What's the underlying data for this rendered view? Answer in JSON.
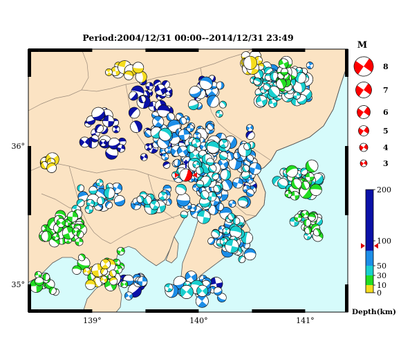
{
  "title": "Period:2004/12/31 00:00--2014/12/31 23:49",
  "colors": {
    "land": "#fbe3c3",
    "sea": "#d6fbfb",
    "border": "#9a8a7a",
    "coast": "#555555",
    "frame": "#000000"
  },
  "map": {
    "lon_range": [
      138.4,
      141.4
    ],
    "lat_range": [
      34.8,
      36.7
    ],
    "x_ticks": [
      {
        "lon": 139,
        "label": "139°"
      },
      {
        "lon": 140,
        "label": "140°"
      },
      {
        "lon": 141,
        "label": "141°"
      }
    ],
    "y_ticks": [
      {
        "lat": 35,
        "label": "35°"
      },
      {
        "lat": 36,
        "label": "36°"
      }
    ],
    "epicenter_marker": {
      "lon": 139.88,
      "lat": 35.79,
      "color": "#ff0000"
    }
  },
  "magnitude_legend": {
    "title": "M",
    "items": [
      {
        "label": "8",
        "mag": 8
      },
      {
        "label": "7",
        "mag": 7
      },
      {
        "label": "6",
        "mag": 6
      },
      {
        "label": "5",
        "mag": 5
      },
      {
        "label": "4",
        "mag": 4
      },
      {
        "label": "3",
        "mag": 3
      }
    ]
  },
  "depth_scale": {
    "label": "Depth(km)",
    "ticks": [
      {
        "value": 200,
        "label": "200"
      },
      {
        "value": 100,
        "label": "100"
      },
      {
        "value": 50,
        "label": "50"
      },
      {
        "value": 30,
        "label": "30"
      },
      {
        "value": 10,
        "label": "10"
      },
      {
        "value": 0,
        "label": "0"
      }
    ],
    "marker_value": 90,
    "bands": [
      {
        "from": 0,
        "to": 10,
        "color": "#f5dc1e"
      },
      {
        "from": 10,
        "to": 30,
        "color": "#22dd22"
      },
      {
        "from": 30,
        "to": 50,
        "color": "#19cfcf"
      },
      {
        "from": 50,
        "to": 80,
        "color": "#1c8ee8"
      },
      {
        "from": 80,
        "to": 200,
        "color": "#0a11a8"
      }
    ]
  }
}
